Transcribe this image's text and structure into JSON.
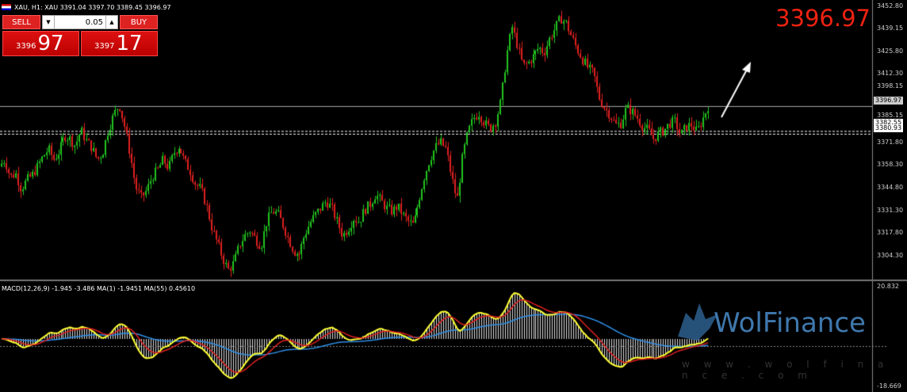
{
  "header": {
    "symbol_text": "XAU, H1:  XAU  3391.04 3397.70 3389.45 3396.97"
  },
  "big_price": "3396.97",
  "trade_panel": {
    "sell_label": "SELL",
    "buy_label": "BUY",
    "volume": "0.05",
    "sell_small": "3396",
    "sell_large": "97",
    "buy_small": "3397",
    "buy_large": "17"
  },
  "price_axis": [
    "3452.80",
    "3439.15",
    "3425.80",
    "3412.30",
    "3398.15",
    "3385.15",
    "3371.80",
    "3358.30",
    "3344.80",
    "3331.30",
    "3317.80",
    "3304.30"
  ],
  "price_tags": {
    "current": "3396.97",
    "line_a": "3382.55",
    "line_b": "3380.93"
  },
  "macd": {
    "label": "MACD(12,26,9) -1.945 -3.486 MA(1) -1.9451 MA(55) 0.45610",
    "axis_top": "20.832",
    "axis_bottom": "-18.669"
  },
  "watermark": {
    "brand": "WolFinance",
    "url": "w w w . w o l f i n a n c e . c o m"
  },
  "colors": {
    "bull": "#22c51f",
    "bear": "#e02020",
    "macd_main": "#ffff33",
    "macd_signal": "#e02020",
    "macd_ma": "#2f8fe8",
    "bg": "#000000"
  },
  "chart_data": {
    "type": "candlestick",
    "symbol": "XAU",
    "timeframe": "H1",
    "ylim": [
      3297,
      3457
    ],
    "close_path": [
      3362,
      3366,
      3356,
      3358,
      3349,
      3354,
      3357,
      3362,
      3368,
      3372,
      3366,
      3371,
      3380,
      3378,
      3374,
      3383,
      3377,
      3373,
      3366,
      3370,
      3383,
      3392,
      3398,
      3385,
      3369,
      3350,
      3344,
      3348,
      3356,
      3360,
      3366,
      3361,
      3370,
      3374,
      3365,
      3360,
      3352,
      3349,
      3340,
      3327,
      3318,
      3309,
      3302,
      3306,
      3316,
      3322,
      3325,
      3320,
      3316,
      3330,
      3336,
      3335,
      3328,
      3320,
      3313,
      3311,
      3322,
      3329,
      3334,
      3338,
      3342,
      3338,
      3330,
      3322,
      3326,
      3332,
      3330,
      3337,
      3340,
      3346,
      3342,
      3338,
      3336,
      3339,
      3334,
      3330,
      3328,
      3343,
      3356,
      3366,
      3373,
      3376,
      3372,
      3356,
      3342,
      3368,
      3382,
      3390,
      3393,
      3387,
      3384,
      3388,
      3400,
      3426,
      3443,
      3432,
      3420,
      3422,
      3426,
      3431,
      3428,
      3436,
      3442,
      3448,
      3445,
      3437,
      3430,
      3424,
      3419,
      3416,
      3402,
      3396,
      3392,
      3386,
      3387,
      3396,
      3394,
      3390,
      3385,
      3383,
      3378,
      3381,
      3383,
      3387,
      3388,
      3380,
      3385,
      3386,
      3382,
      3389,
      3397
    ]
  }
}
